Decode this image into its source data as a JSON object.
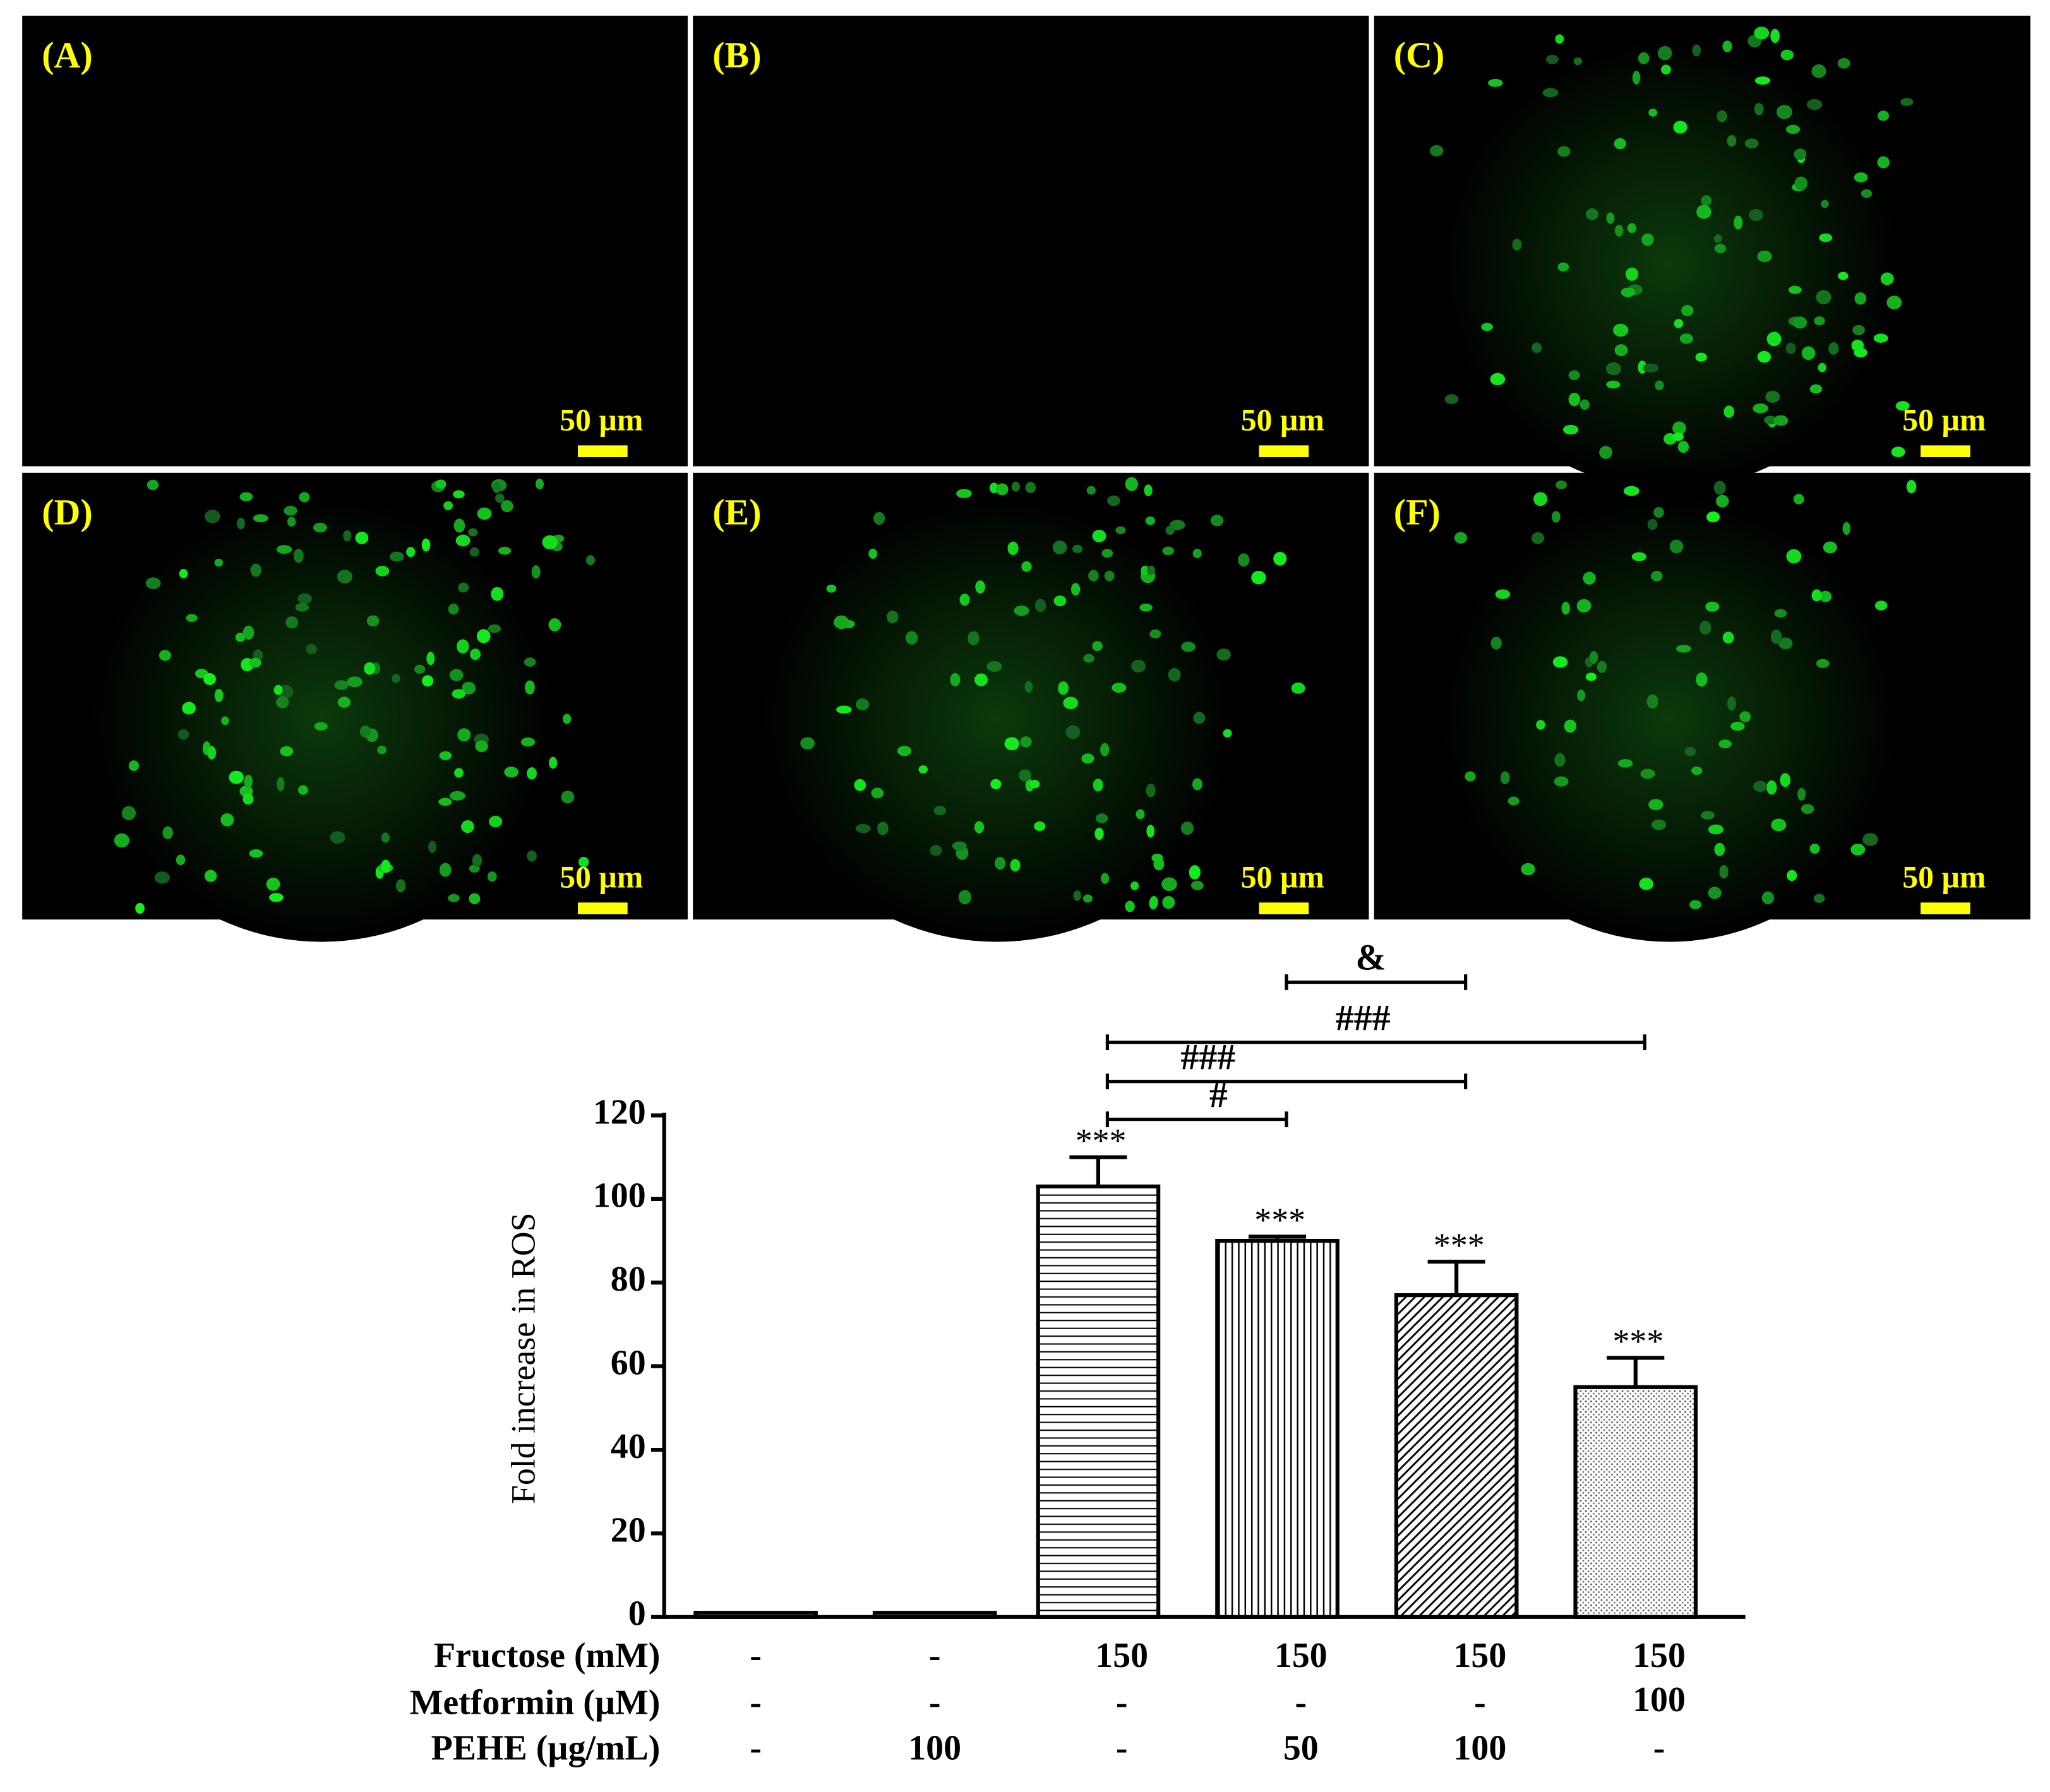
{
  "panels": [
    {
      "label": "(A)",
      "scale": "50 µm"
    },
    {
      "label": "(B)",
      "scale": "50 µm"
    },
    {
      "label": "(C)",
      "scale": "50 µm"
    },
    {
      "label": "(D)",
      "scale": "50 µm"
    },
    {
      "label": "(E)",
      "scale": "50 µm"
    },
    {
      "label": "(F)",
      "scale": "50 µm"
    }
  ],
  "chart_data": {
    "type": "bar",
    "y_label": "Fold increase in ROS",
    "categories": [
      null,
      null,
      null,
      null,
      null,
      null
    ],
    "values": [
      1,
      1,
      103,
      90,
      77,
      55
    ],
    "errors": [
      0,
      0,
      7,
      1,
      8,
      7
    ],
    "value_labels": [
      null,
      null,
      "***",
      "***",
      "***",
      "***"
    ],
    "ylim": [
      0,
      120
    ],
    "yticks": [
      0,
      20,
      40,
      60,
      80,
      100,
      120
    ],
    "color": "#000000",
    "brackets": [
      "#",
      "###",
      "###",
      "&"
    ],
    "conditions": [
      {
        "label": "Fructose (mM)",
        "values": [
          "-",
          "-",
          "150",
          "150",
          "150",
          "150"
        ]
      },
      {
        "label": "Metformin (µM)",
        "values": [
          "-",
          "-",
          "-",
          "-",
          "-",
          "100"
        ]
      },
      {
        "label": "PEHE (µg/mL)",
        "values": [
          "-",
          "100",
          "-",
          "50",
          "100",
          "-"
        ]
      }
    ]
  }
}
